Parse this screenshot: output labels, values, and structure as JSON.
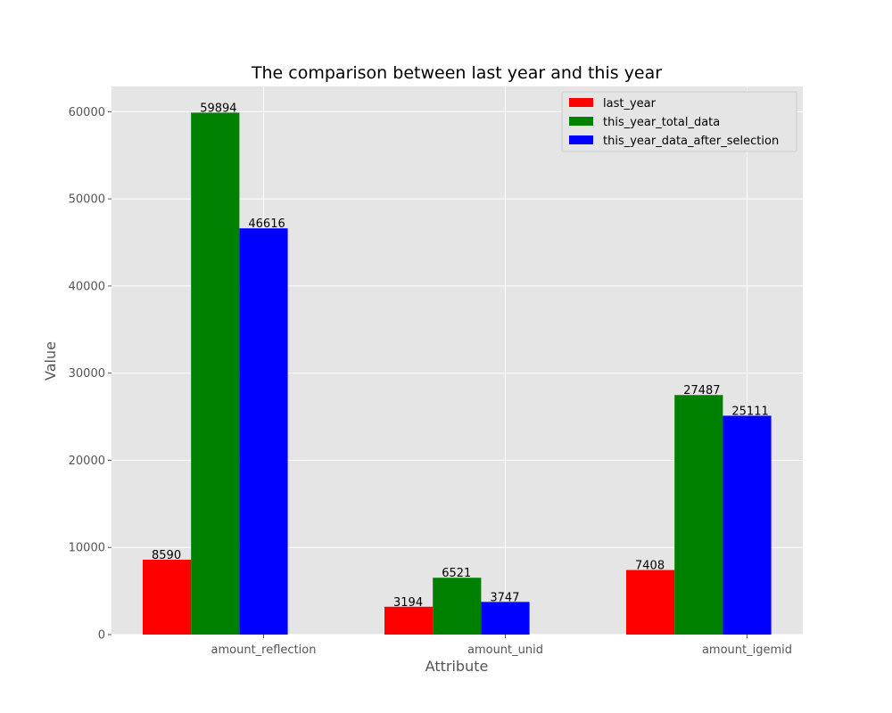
{
  "chart_data": {
    "type": "bar",
    "title": "The comparison between last year and this year",
    "xlabel": "Attribute",
    "ylabel": "Value",
    "categories": [
      "amount_reflection",
      "amount_unid",
      "amount_igemid"
    ],
    "series": [
      {
        "name": "last_year",
        "color": "#ff0000",
        "values": [
          8590,
          3194,
          7408
        ]
      },
      {
        "name": "this_year_total_data",
        "color": "#008000",
        "values": [
          59894,
          6521,
          27487
        ]
      },
      {
        "name": "this_year_data_after_selection",
        "color": "#0000ff",
        "values": [
          46616,
          3747,
          25111
        ]
      }
    ],
    "ylim": [
      0,
      62900
    ],
    "yticks": [
      0,
      10000,
      20000,
      30000,
      40000,
      50000,
      60000
    ],
    "grid": true,
    "legend_position": "top-right",
    "background_color": "#e5e5e5"
  }
}
